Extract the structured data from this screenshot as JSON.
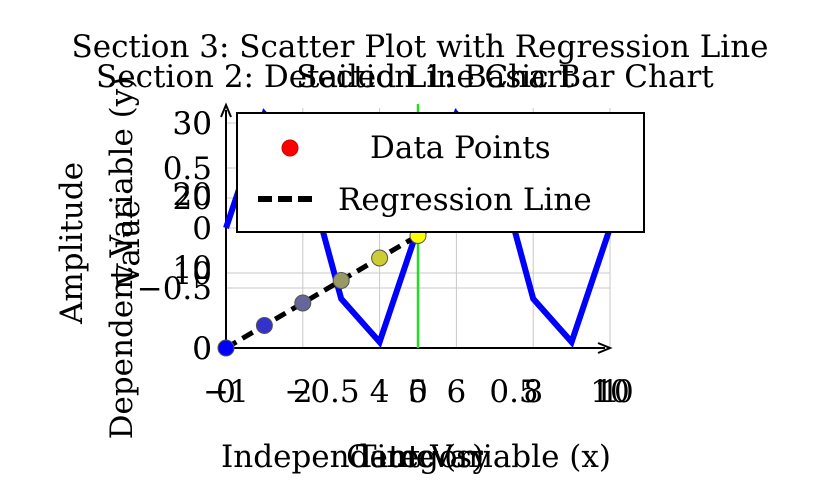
{
  "titles": [
    "Section 3: Scatter Plot with Regression Line",
    "Section 2: Detailed Line Chart",
    "Section 1: Basic Bar Chart"
  ],
  "axis_labels": {
    "x": [
      "Independent Variable (x)",
      "Time (s)",
      "Category"
    ],
    "y": [
      "Dependent Variable (y)",
      "Amplitude",
      "Value"
    ]
  },
  "legend": {
    "entries": [
      "Data Points",
      "Regression Line"
    ]
  },
  "chart_data": [
    {
      "type": "scatter",
      "title": "Section 3: Scatter Plot with Regression Line",
      "xlabel": "Independent Variable (x)",
      "ylabel": "Dependent Variable (y)",
      "xlim": [
        0,
        10
      ],
      "ylim": [
        0,
        32
      ],
      "grid": true,
      "legend_position": "top-right",
      "series": [
        {
          "name": "Data Points",
          "color": "#ff0000",
          "colormap": [
            "#0000ff",
            "#ffff00",
            "#ff0000"
          ],
          "x": [
            0,
            1,
            2,
            3,
            4,
            5,
            6,
            7,
            8,
            9,
            10
          ],
          "y": [
            0,
            3,
            6,
            9,
            12,
            15,
            18,
            21,
            24,
            27,
            30
          ]
        },
        {
          "name": "Regression Line",
          "color": "#000000",
          "style": "dashed",
          "x": [
            0,
            10
          ],
          "y": [
            0,
            30
          ]
        }
      ],
      "x_ticks": [
        "0",
        "5",
        "10"
      ],
      "y_ticks": [
        "0",
        "10",
        "20",
        "30"
      ]
    },
    {
      "type": "line",
      "title": "Section 2: Detailed Line Chart",
      "xlabel": "Time (s)",
      "ylabel": "Amplitude",
      "xlim": [
        -1,
        1
      ],
      "ylim": [
        -1,
        1
      ],
      "grid": true,
      "series": [
        {
          "color": "#0000ff",
          "x": [
            -1,
            -0.8,
            -0.6,
            -0.4,
            -0.2,
            0,
            0.2,
            0.4,
            0.6,
            0.8,
            1
          ],
          "y": [
            0,
            0.95,
            0.59,
            -0.59,
            -0.95,
            0,
            0.95,
            0.59,
            -0.59,
            -0.95,
            0
          ]
        }
      ],
      "reference_line": {
        "x": 0,
        "color": "#00e000"
      },
      "x_ticks": [
        "−1",
        "−0.5",
        "0",
        "0.5",
        "1"
      ],
      "y_ticks": [
        "−0.5",
        "0",
        "0.5"
      ]
    },
    {
      "type": "bar",
      "title": "Section 1: Basic Bar Chart",
      "xlabel": "Category",
      "ylabel": "Value",
      "ylim": [
        0,
        32
      ],
      "x_ticks": [
        "0",
        "2",
        "4",
        "6",
        "8",
        "10"
      ],
      "y_ticks": [
        "0",
        "10",
        "20",
        "30"
      ]
    }
  ]
}
